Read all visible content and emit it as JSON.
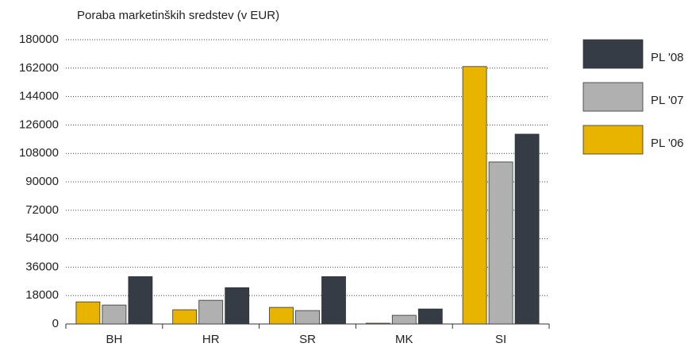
{
  "chart_data": {
    "type": "bar",
    "title": "Poraba marketinških sredstev (v EUR)",
    "categories": [
      "BH",
      "HR",
      "SR",
      "MK",
      "SI"
    ],
    "series": [
      {
        "name": "PL '06",
        "color": "#e8b400",
        "values": [
          14000,
          9000,
          10500,
          500,
          163000
        ]
      },
      {
        "name": "PL '07",
        "color": "#b0b0b0",
        "values": [
          12000,
          15000,
          8500,
          5500,
          102600
        ]
      },
      {
        "name": "PL '08",
        "color": "#363c45",
        "values": [
          30000,
          23000,
          30000,
          9500,
          120200
        ]
      }
    ],
    "ylim": [
      0,
      180000
    ],
    "yticks": [
      0,
      18000,
      36000,
      54000,
      72000,
      90000,
      108000,
      126000,
      144000,
      162000,
      180000
    ],
    "grid": true,
    "legend": "right"
  }
}
